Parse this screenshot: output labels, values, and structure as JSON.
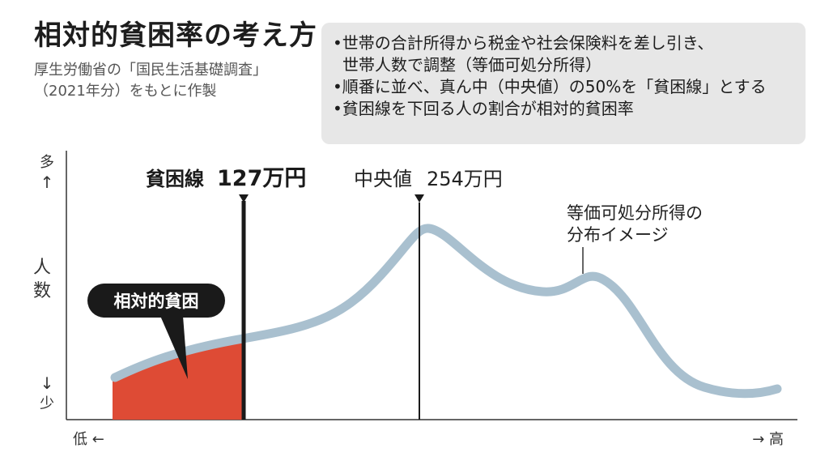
{
  "title": "相対的貧困率の考え方",
  "source": [
    "厚生労働省の「国民生活基礎調査」",
    "（2021年分）をもとに作製"
  ],
  "notes": [
    {
      "lines": [
        "•世帯の合計所得から税金や社会保険料を差し引き、",
        "世帯人数で調整（等価可処分所得）"
      ]
    },
    {
      "lines": [
        "•順番に並べ、真ん中（中央値）の50%を「貧困線」とする"
      ]
    },
    {
      "lines": [
        "•貧困線を下回る人の割合が相対的貧困率"
      ]
    }
  ],
  "diagram": {
    "y_top_label": "多",
    "y_up_arrow": "↑",
    "y_label_chars": [
      "人",
      "数"
    ],
    "y_down_arrow": "↓",
    "y_bottom_label": "少",
    "x_left_label": "低 ←",
    "x_right_label": "→ 高",
    "poverty_line_label": "貧困線",
    "poverty_line_value": "127万円",
    "median_label": "中央値",
    "median_value": "254万円",
    "curve_label": [
      "等価可処分所得の",
      "分布イメージ"
    ],
    "poverty_bubble": "相対的貧困",
    "colors": {
      "curve": "#a9c0cf",
      "poverty_fill": "#de4b35",
      "bubble_bg": "#1a1a1a",
      "note_bg": "#e7e7e7"
    }
  }
}
